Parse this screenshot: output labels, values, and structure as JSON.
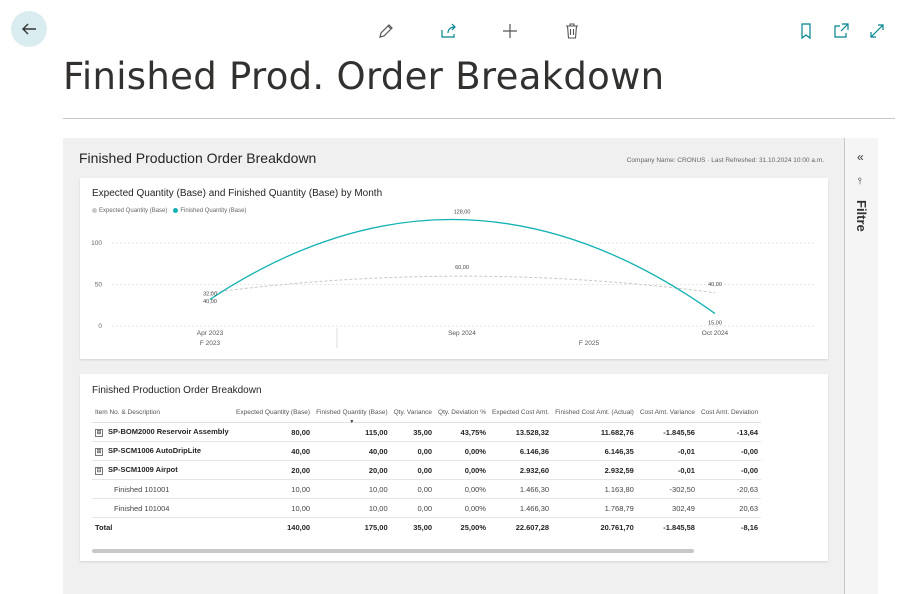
{
  "page": {
    "title": "Finished Prod. Order Breakdown"
  },
  "toolbar": {
    "icons": [
      "back-arrow-icon",
      "pencil-icon",
      "share-icon",
      "plus-icon",
      "trash-icon",
      "bookmark-icon",
      "open-new-window-icon",
      "expand-icon"
    ],
    "accent_color": "#00838f"
  },
  "report": {
    "title": "Finished Production Order Breakdown",
    "meta": "Company Name: CRONUS · Last Refreshed: 31.10.2024 10:00 a.m."
  },
  "chart_data": {
    "type": "line",
    "title": "Expected Quantity (Base) and Finished Quantity (Base) by Month",
    "legend": "top-left",
    "x": [
      "Apr 2023",
      "Sep 2024",
      "Oct 2024"
    ],
    "x_groups": [
      "F 2023",
      "F 2025"
    ],
    "ylim": [
      0,
      130
    ],
    "yticks": [
      0,
      50,
      100
    ],
    "grid": true,
    "series": [
      {
        "name": "Expected Quantity (Base)",
        "color": "#c8c8c8",
        "style": "dashed",
        "values": [
          40,
          60,
          40
        ],
        "labels": [
          "40,00",
          "60,00",
          "40,00"
        ]
      },
      {
        "name": "Finished Quantity (Base)",
        "color": "#12b2b4",
        "style": "solid",
        "values": [
          32,
          128,
          15
        ],
        "labels": [
          "32,00",
          "128,00",
          "15,00"
        ]
      }
    ]
  },
  "table": {
    "title": "Finished Production Order Breakdown",
    "columns": [
      "Item No. & Description",
      "Expected Quantity (Base)",
      "Finished Quantity (Base)",
      "Qty. Variance",
      "Qty. Deviation %",
      "Expected Cost Amt.",
      "Finished Cost Amt. (Actual)",
      "Cost Amt. Variance",
      "Cost Amt. Deviation"
    ],
    "rows": [
      {
        "expander": "⊞",
        "cells": [
          "SP-BOM2000 Reservoir Assembly",
          "80,00",
          "115,00",
          "35,00",
          "43,75%",
          "13.528,32",
          "11.682,76",
          "-1.845,56",
          "-13,64"
        ]
      },
      {
        "expander": "⊞",
        "cells": [
          "SP-SCM1006 AutoDripLite",
          "40,00",
          "40,00",
          "0,00",
          "0,00%",
          "6.146,36",
          "6.146,35",
          "-0,01",
          "-0,00"
        ]
      },
      {
        "expander": "⊟",
        "cells": [
          "SP-SCM1009 Airpot",
          "20,00",
          "20,00",
          "0,00",
          "0,00%",
          "2.932,60",
          "2.932,59",
          "-0,01",
          "-0,00"
        ]
      },
      {
        "cells": [
          "Finished 101001",
          "10,00",
          "10,00",
          "0,00",
          "0,00%",
          "1.466,30",
          "1.163,80",
          "-302,50",
          "-20,63"
        ]
      },
      {
        "cells": [
          "Finished 101004",
          "10,00",
          "10,00",
          "0,00",
          "0,00%",
          "1.466,30",
          "1.768,79",
          "302,49",
          "20,63"
        ]
      },
      {
        "cells": [
          "Total",
          "140,00",
          "175,00",
          "35,00",
          "25,00%",
          "22.607,28",
          "20.761,70",
          "-1.845,58",
          "-8,16"
        ]
      }
    ]
  },
  "filter_pane": {
    "label": "Filtre",
    "collapse_glyph": "«",
    "filter_glyph": "⫯"
  }
}
